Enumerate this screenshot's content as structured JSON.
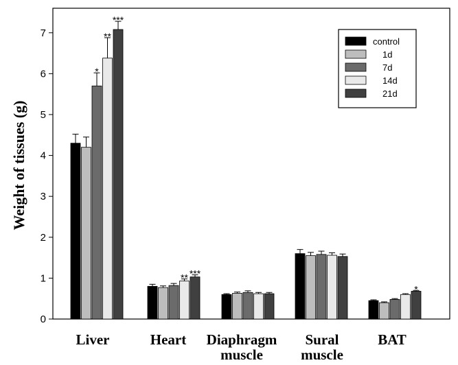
{
  "chart_data": {
    "type": "bar",
    "title": "",
    "xlabel": "",
    "ylabel": "Weight of tissues (g)",
    "ylim": [
      0,
      7.6
    ],
    "yticks": [
      "0",
      "1",
      "2",
      "3",
      "4",
      "5",
      "6",
      "7"
    ],
    "categories": [
      [
        "Liver"
      ],
      [
        "Heart"
      ],
      [
        "Diaphragm",
        "muscle"
      ],
      [
        "Sural",
        "muscle"
      ],
      [
        "BAT"
      ]
    ],
    "legend_position": "top-right",
    "series": [
      {
        "name": "control",
        "color": "#000000",
        "values": [
          4.3,
          0.8,
          0.6,
          1.6,
          0.45
        ],
        "errors": [
          0.22,
          0.05,
          0.02,
          0.1,
          0.02
        ],
        "significance": [
          "",
          "",
          "",
          "",
          ""
        ]
      },
      {
        "name": "1d",
        "color": "#bdbdbd",
        "values": [
          4.2,
          0.77,
          0.63,
          1.55,
          0.4
        ],
        "errors": [
          0.25,
          0.04,
          0.03,
          0.08,
          0.02
        ],
        "significance": [
          "",
          "",
          "",
          "",
          ""
        ]
      },
      {
        "name": "7d",
        "color": "#6b6b6b",
        "values": [
          5.7,
          0.82,
          0.65,
          1.58,
          0.48
        ],
        "errors": [
          0.32,
          0.05,
          0.04,
          0.08,
          0.02
        ],
        "significance": [
          "*",
          "",
          "",
          "",
          ""
        ]
      },
      {
        "name": "14d",
        "color": "#e9e9e9",
        "values": [
          6.38,
          0.93,
          0.62,
          1.56,
          0.6
        ],
        "errors": [
          0.5,
          0.05,
          0.03,
          0.06,
          0.02
        ],
        "significance": [
          "**",
          "**",
          "",
          "",
          ""
        ]
      },
      {
        "name": "21d",
        "color": "#404040",
        "values": [
          7.08,
          1.03,
          0.62,
          1.53,
          0.68
        ],
        "errors": [
          0.2,
          0.05,
          0.03,
          0.06,
          0.02
        ],
        "significance": [
          "***",
          "***",
          "",
          "",
          "*"
        ]
      }
    ]
  }
}
